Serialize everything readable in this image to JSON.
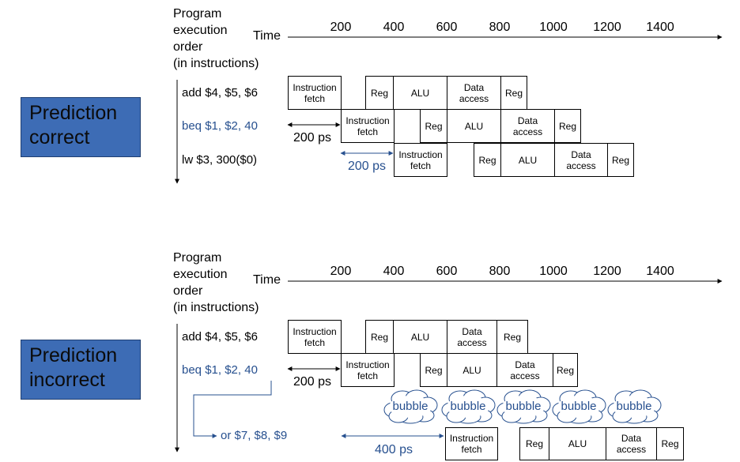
{
  "panels": [
    {
      "id": "correct",
      "side_label": [
        "Prediction",
        "correct"
      ],
      "header": [
        "Program",
        "execution",
        "order",
        "(in instructions)"
      ],
      "time_label": "Time",
      "ticks": [
        "200",
        "400",
        "600",
        "800",
        "1000",
        "1200",
        "1400"
      ],
      "instructions": [
        "add $4, $5, $6",
        "beq $1, $2, 40",
        "lw  $3, 300($0)"
      ],
      "delay_labels": [
        "200 ps",
        "200 ps"
      ]
    },
    {
      "id": "incorrect",
      "side_label": [
        "Prediction",
        "incorrect"
      ],
      "header": [
        "Program",
        "execution",
        "order",
        "(in instructions)"
      ],
      "time_label": "Time",
      "ticks": [
        "200",
        "400",
        "600",
        "800",
        "1000",
        "1200",
        "1400"
      ],
      "instructions": [
        "add $4, $5, $6",
        "beq $1, $2, 40",
        "or $7, $8, $9"
      ],
      "delay_labels": [
        "200 ps",
        "400 ps"
      ],
      "bubble_label": "bubble"
    }
  ],
  "stages": {
    "fetch": "Instruction\nfetch",
    "reg": "Reg",
    "alu": "ALU",
    "data": "Data\naccess"
  },
  "colors": {
    "box": "#3d6cb5",
    "blue_text": "#27508f"
  }
}
